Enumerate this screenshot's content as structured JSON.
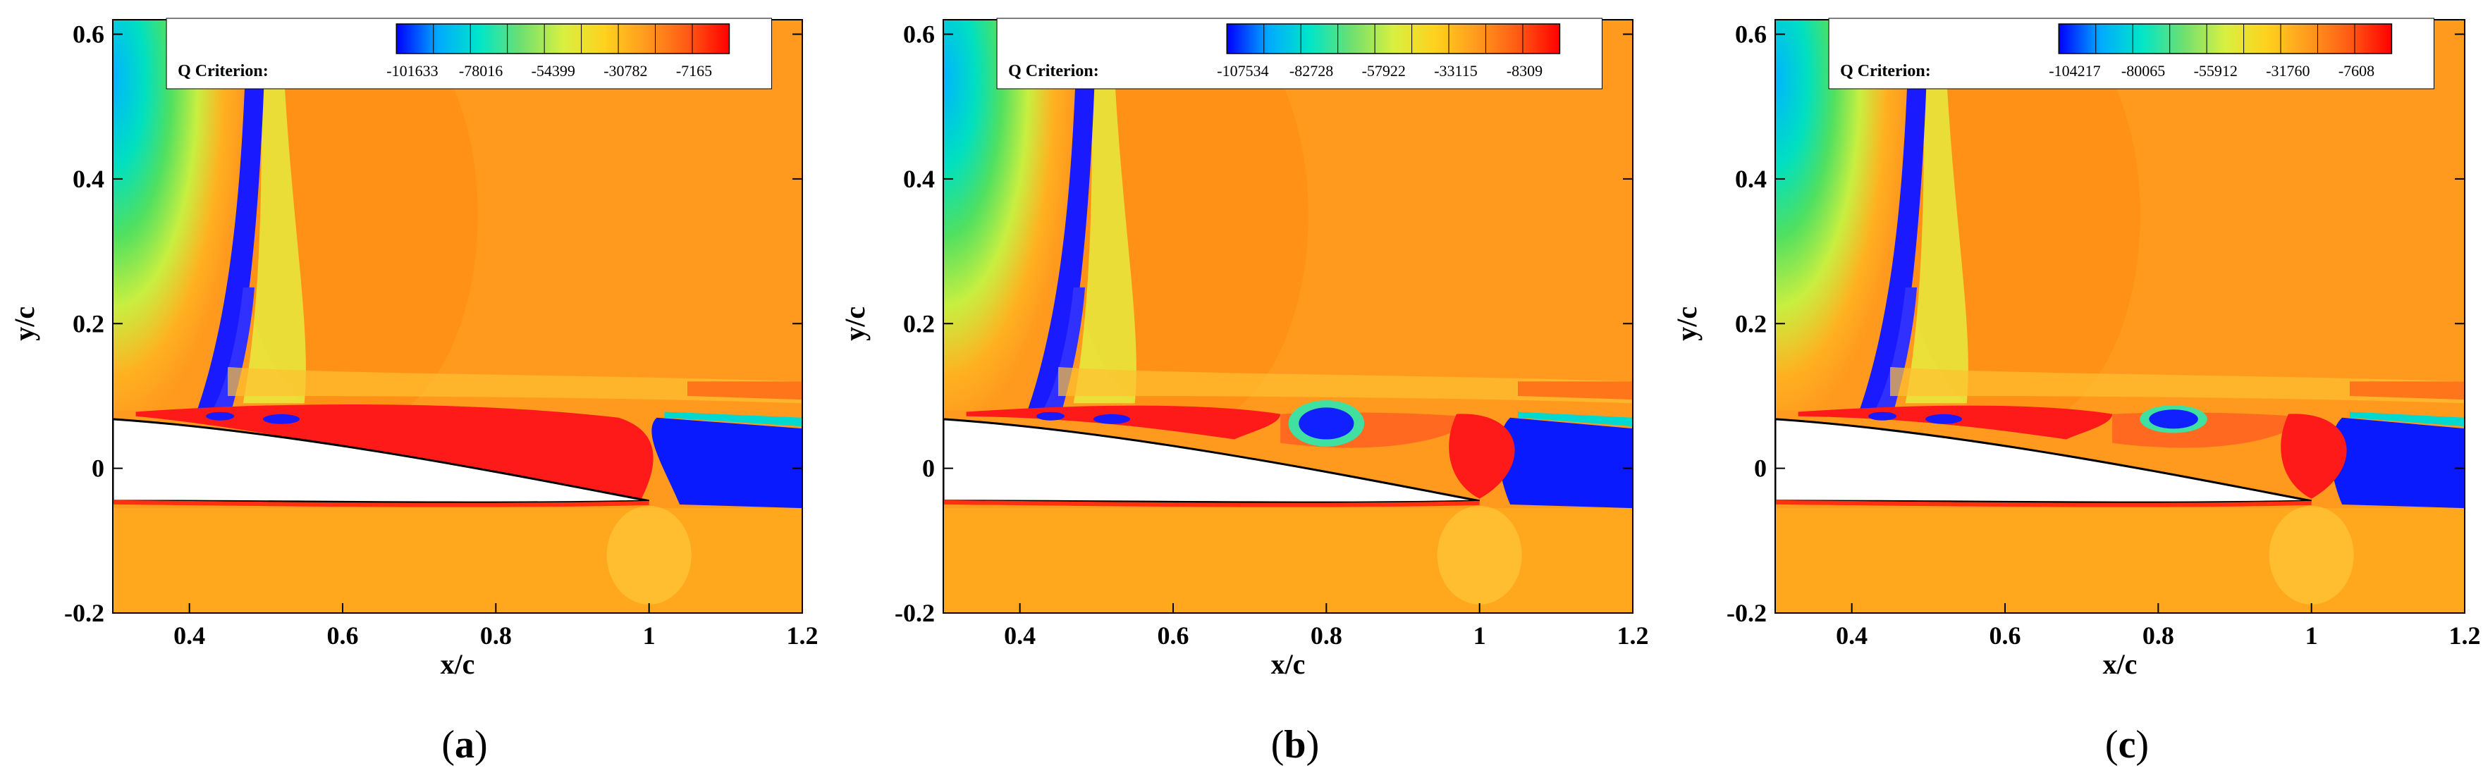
{
  "panels": [
    {
      "caption_open": "(",
      "caption_letter": "a",
      "caption_close": ")",
      "legend_title": "Q Criterion:",
      "legend_ticks": [
        "-101633",
        "-78016",
        "-54399",
        "-30782",
        "-7165"
      ]
    },
    {
      "caption_open": "(",
      "caption_letter": "b",
      "caption_close": ")",
      "legend_title": "Q Criterion:",
      "legend_ticks": [
        "-107534",
        "-82728",
        "-57922",
        "-33115",
        "-8309"
      ]
    },
    {
      "caption_open": "(",
      "caption_letter": "c",
      "caption_close": ")",
      "legend_title": "Q Criterion:",
      "legend_ticks": [
        "-104217",
        "-80065",
        "-55912",
        "-31760",
        "-7608"
      ]
    }
  ],
  "axes": {
    "xlabel": "x/c",
    "ylabel": "y/c",
    "x_ticks": [
      "0.4",
      "0.6",
      "0.8",
      "1",
      "1.2"
    ],
    "y_ticks": [
      "0.6",
      "0.4",
      "0.2",
      "0",
      "-0.2"
    ],
    "x_range": [
      0.3,
      1.2
    ],
    "y_range": [
      -0.2,
      0.62
    ]
  },
  "colors": {
    "colormap": [
      "#0000ff",
      "#00aaff",
      "#00e6c8",
      "#6fe06f",
      "#d8f040",
      "#ffd21e",
      "#ff9a1e",
      "#ff5a14",
      "#ff0000"
    ],
    "background_field": "#ff9a1e",
    "vortex_blue": "#1a1aff",
    "separation_red": "#ff1a1a"
  }
}
